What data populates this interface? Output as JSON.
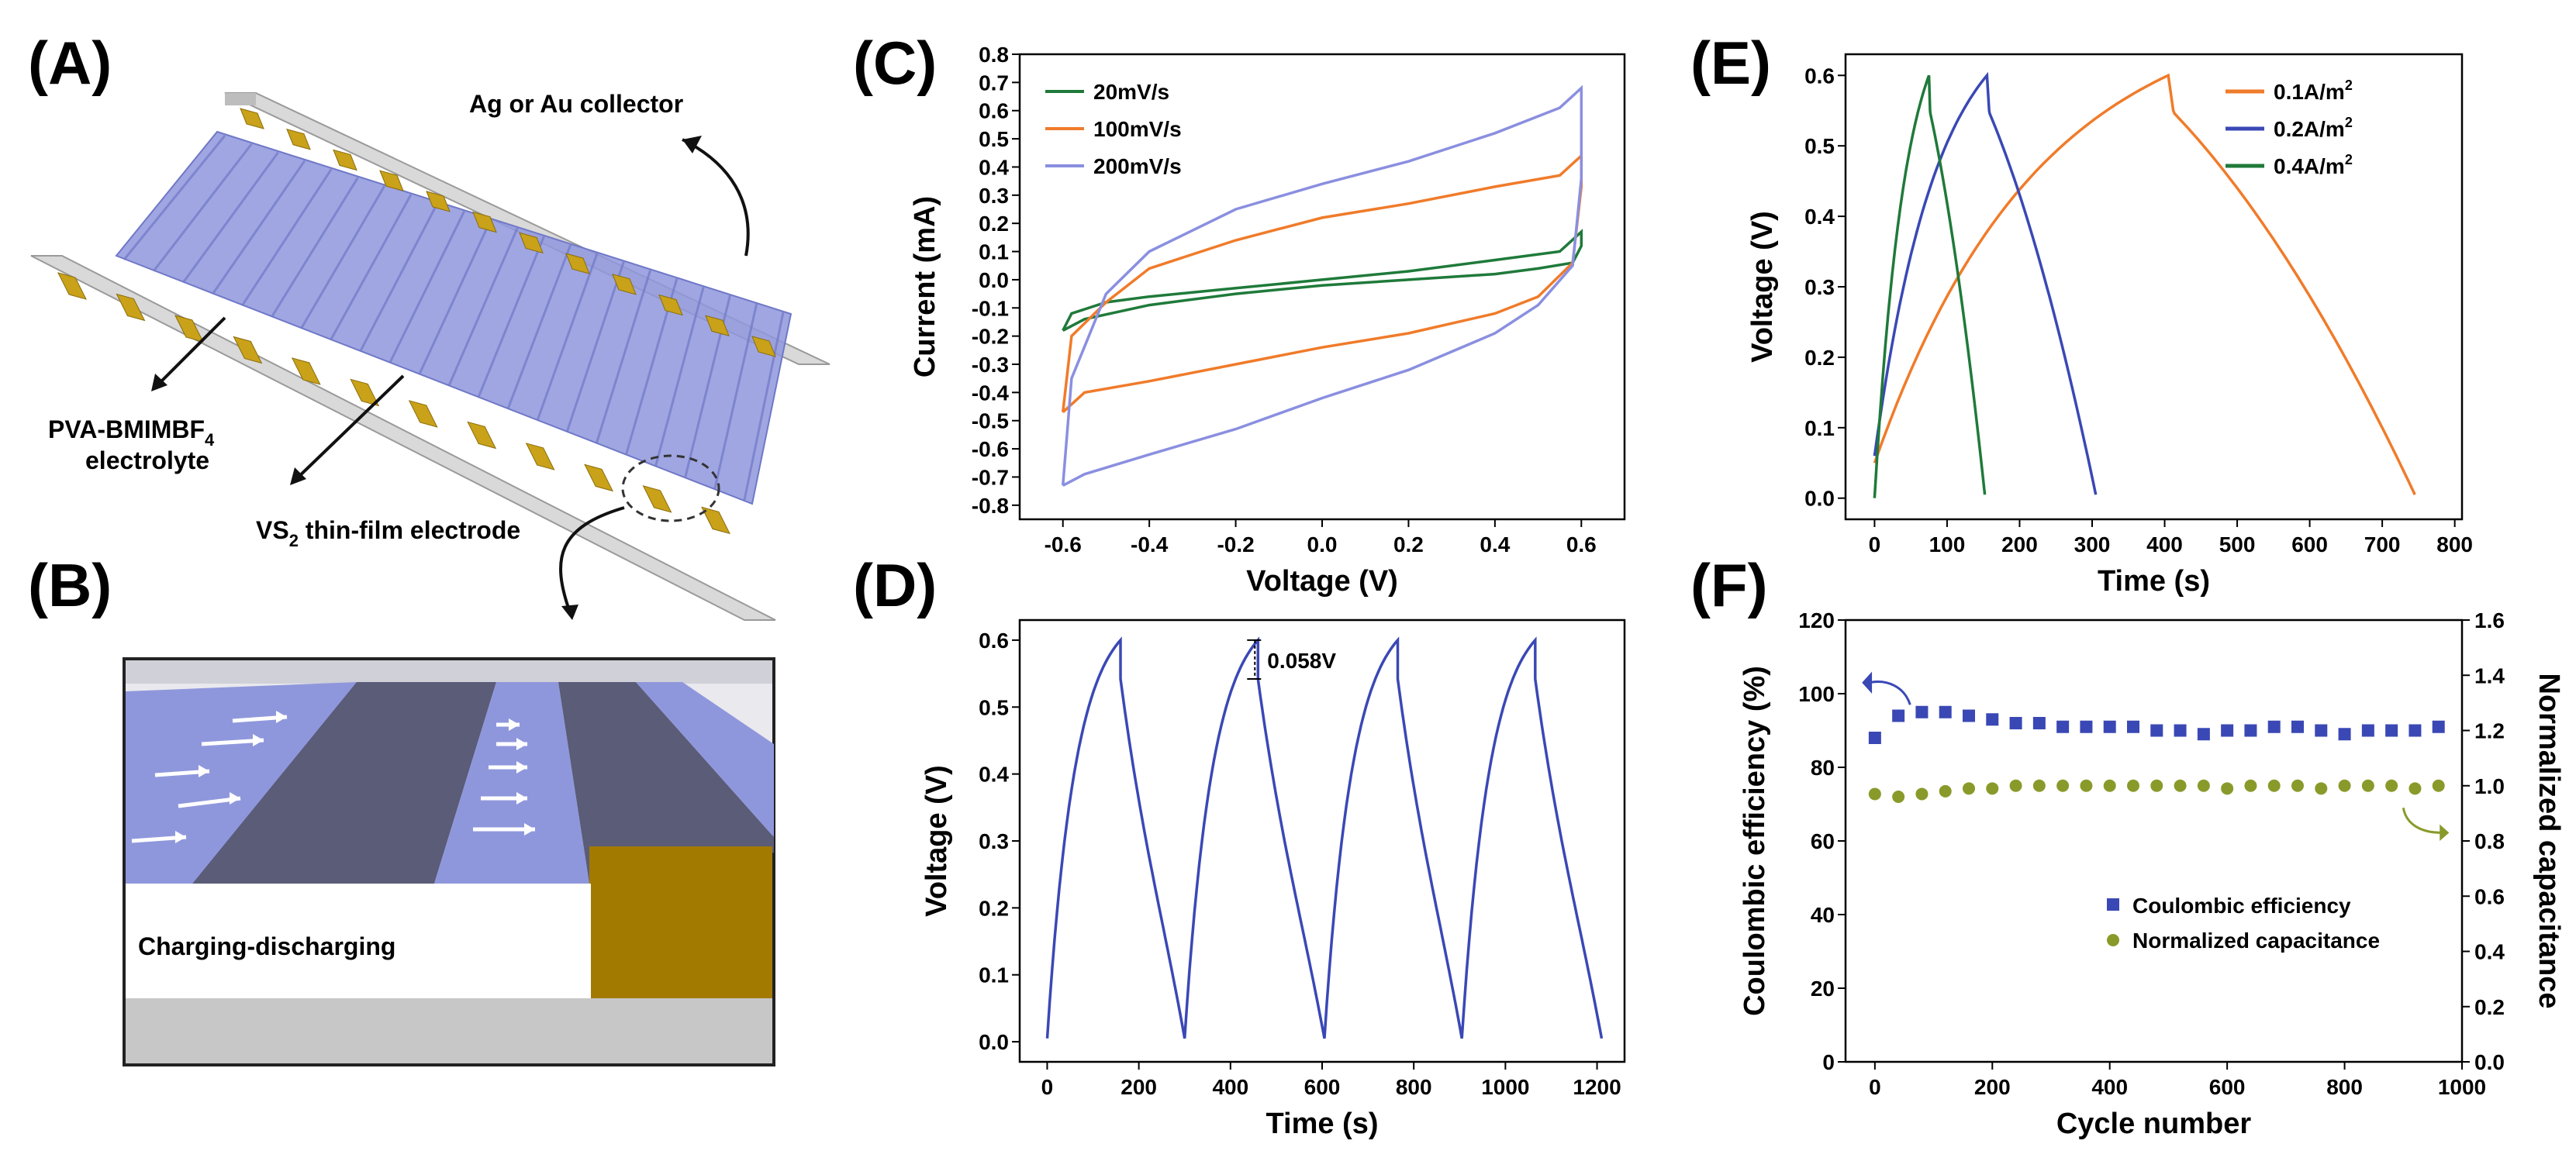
{
  "panel_labels": {
    "A": "(A)",
    "B": "(B)",
    "C": "(C)",
    "D": "(D)",
    "E": "(E)",
    "F": "(F)"
  },
  "schematic": {
    "collector_label": "Ag or Au collector",
    "electrolyte_label_1": "PVA-BMIMBF",
    "electrolyte_label_sub": "4",
    "electrolyte_label_2": "electrolyte",
    "electrode_label_pre": "VS",
    "electrode_label_sub": "2",
    "electrode_label_post": " thin-film electrode",
    "inset_caption": "Charging-discharging",
    "colors": {
      "film": "#8f97dc",
      "collector": "#d9d9d9",
      "contact": "#c9a21a",
      "dark_strip": "#5a5c78"
    }
  },
  "chart_data": [
    {
      "panel": "C",
      "type": "line",
      "xlabel": "Voltage (V)",
      "ylabel": "Current (mA)",
      "xlim": [
        -0.7,
        0.7
      ],
      "ylim": [
        -0.85,
        0.8
      ],
      "xticks": [
        "-0.6",
        "-0.4",
        "-0.2",
        "0.0",
        "0.2",
        "0.4",
        "0.6"
      ],
      "yticks": [
        "0.8",
        "0.7",
        "0.6",
        "0.5",
        "0.4",
        "0.3",
        "0.2",
        "0.1",
        "0.0",
        "-0.1",
        "-0.2",
        "-0.3",
        "-0.4",
        "-0.5",
        "-0.6",
        "-0.7",
        "-0.8"
      ],
      "legend_position": "top-left",
      "series": [
        {
          "name": "20mV/s",
          "color": "#1f7a3a",
          "x": [
            -0.6,
            -0.58,
            -0.5,
            -0.4,
            -0.2,
            0.0,
            0.2,
            0.4,
            0.55,
            0.6,
            0.6,
            0.58,
            0.5,
            0.4,
            0.2,
            0.0,
            -0.2,
            -0.4,
            -0.55,
            -0.6
          ],
          "y": [
            -0.18,
            -0.12,
            -0.08,
            -0.06,
            -0.03,
            0.0,
            0.03,
            0.07,
            0.1,
            0.17,
            0.12,
            0.06,
            0.04,
            0.02,
            0.0,
            -0.02,
            -0.05,
            -0.09,
            -0.14,
            -0.18
          ]
        },
        {
          "name": "100mV/s",
          "color": "#f07b2a",
          "x": [
            -0.6,
            -0.58,
            -0.5,
            -0.4,
            -0.2,
            0.0,
            0.2,
            0.4,
            0.55,
            0.6,
            0.6,
            0.58,
            0.5,
            0.4,
            0.2,
            0.0,
            -0.2,
            -0.4,
            -0.55,
            -0.6
          ],
          "y": [
            -0.47,
            -0.2,
            -0.08,
            0.04,
            0.14,
            0.22,
            0.27,
            0.33,
            0.37,
            0.44,
            0.33,
            0.06,
            -0.06,
            -0.12,
            -0.19,
            -0.24,
            -0.3,
            -0.36,
            -0.4,
            -0.47
          ]
        },
        {
          "name": "200mV/s",
          "color": "#8a8fe0",
          "x": [
            -0.6,
            -0.58,
            -0.5,
            -0.4,
            -0.2,
            0.0,
            0.2,
            0.4,
            0.55,
            0.6,
            0.6,
            0.58,
            0.5,
            0.4,
            0.2,
            0.0,
            -0.2,
            -0.4,
            -0.55,
            -0.6
          ],
          "y": [
            -0.73,
            -0.35,
            -0.05,
            0.1,
            0.25,
            0.34,
            0.42,
            0.52,
            0.61,
            0.68,
            0.36,
            0.05,
            -0.09,
            -0.19,
            -0.32,
            -0.42,
            -0.53,
            -0.62,
            -0.69,
            -0.73
          ]
        }
      ]
    },
    {
      "panel": "D",
      "type": "line",
      "xlabel": "Time (s)",
      "ylabel": "Voltage (V)",
      "xlim": [
        -60,
        1260
      ],
      "ylim": [
        -0.03,
        0.63
      ],
      "xticks": [
        "0",
        "200",
        "400",
        "600",
        "800",
        "1000",
        "1200"
      ],
      "yticks": [
        "0.6",
        "0.5",
        "0.4",
        "0.3",
        "0.2",
        "0.1",
        "0.0"
      ],
      "annotation": "0.058V",
      "series": [
        {
          "name": "",
          "color": "#3a48b5",
          "cycles": [
            [
              0,
              160,
              300
            ],
            [
              300,
              460,
              605
            ],
            [
              605,
              765,
              905
            ],
            [
              905,
              1065,
              1210
            ]
          ],
          "vmin": 0.005,
          "vmax": 0.6,
          "ir_drop": 0.058
        }
      ]
    },
    {
      "panel": "E",
      "type": "line",
      "xlabel": "Time (s)",
      "ylabel": "Voltage (V)",
      "xlim": [
        -40,
        810
      ],
      "ylim": [
        -0.03,
        0.63
      ],
      "xticks": [
        "0",
        "100",
        "200",
        "300",
        "400",
        "500",
        "600",
        "700",
        "800"
      ],
      "yticks": [
        "0.6",
        "0.5",
        "0.4",
        "0.3",
        "0.2",
        "0.1",
        "0.0"
      ],
      "legend_position": "top-right",
      "series": [
        {
          "name": "0.1A/m",
          "sup": "2",
          "color": "#f07b2a",
          "t_charge": 405,
          "t_end": 745,
          "v0": 0.05
        },
        {
          "name": "0.2A/m",
          "sup": "2",
          "color": "#3a48b5",
          "t_charge": 155,
          "t_end": 305,
          "v0": 0.06
        },
        {
          "name": "0.4A/m",
          "sup": "2",
          "color": "#1f7a3a",
          "t_charge": 75,
          "t_end": 152,
          "v0": 0.0
        }
      ]
    },
    {
      "panel": "F",
      "type": "scatter",
      "xlabel": "Cycle number",
      "ylabel": "Coulombic efficiency (%)",
      "ylabel_right": "Normalized capacitance",
      "xlim": [
        -50,
        1000
      ],
      "ylim": [
        0,
        120
      ],
      "ylim_right": [
        0.0,
        1.6
      ],
      "xticks": [
        "0",
        "200",
        "400",
        "600",
        "800",
        "1000"
      ],
      "yticks": [
        "120",
        "100",
        "80",
        "60",
        "40",
        "20",
        "0"
      ],
      "yticks_right": [
        "1.6",
        "1.4",
        "1.2",
        "1.0",
        "0.8",
        "0.6",
        "0.4",
        "0.2",
        "0.0"
      ],
      "legend_position": "bottom-right",
      "series": [
        {
          "name": "Coulombic efficiency",
          "color": "#3a48b5",
          "marker": "square",
          "x": [
            0,
            40,
            80,
            120,
            160,
            200,
            240,
            280,
            320,
            360,
            400,
            440,
            480,
            520,
            560,
            600,
            640,
            680,
            720,
            760,
            800,
            840,
            880,
            920,
            960
          ],
          "y": [
            88,
            94,
            95,
            95,
            94,
            93,
            92,
            92,
            91,
            91,
            91,
            91,
            90,
            90,
            89,
            90,
            90,
            91,
            91,
            90,
            89,
            90,
            90,
            90,
            91
          ]
        },
        {
          "name": "Normalized capacitance",
          "color": "#8a9a2a",
          "marker": "circle",
          "x": [
            0,
            40,
            80,
            120,
            160,
            200,
            240,
            280,
            320,
            360,
            400,
            440,
            480,
            520,
            560,
            600,
            640,
            680,
            720,
            760,
            800,
            840,
            880,
            920,
            960
          ],
          "y": [
            0.97,
            0.96,
            0.97,
            0.98,
            0.99,
            0.99,
            1.0,
            1.0,
            1.0,
            1.0,
            1.0,
            1.0,
            1.0,
            1.0,
            1.0,
            0.99,
            1.0,
            1.0,
            1.0,
            0.99,
            1.0,
            1.0,
            1.0,
            0.99,
            1.0
          ]
        }
      ]
    }
  ]
}
